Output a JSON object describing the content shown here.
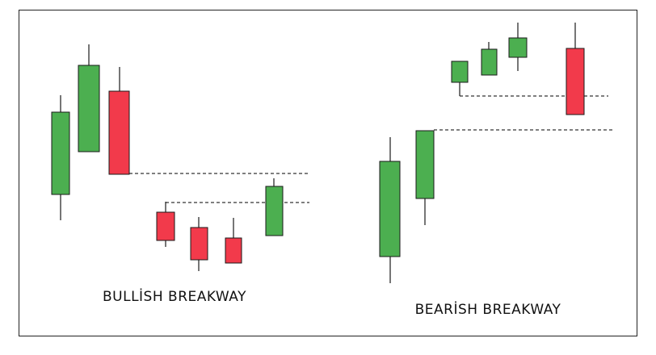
{
  "labels": {
    "bullish": "BULLİSH BREAKWAY",
    "bearish": "BEARİSH BREAKWAY"
  }
}
